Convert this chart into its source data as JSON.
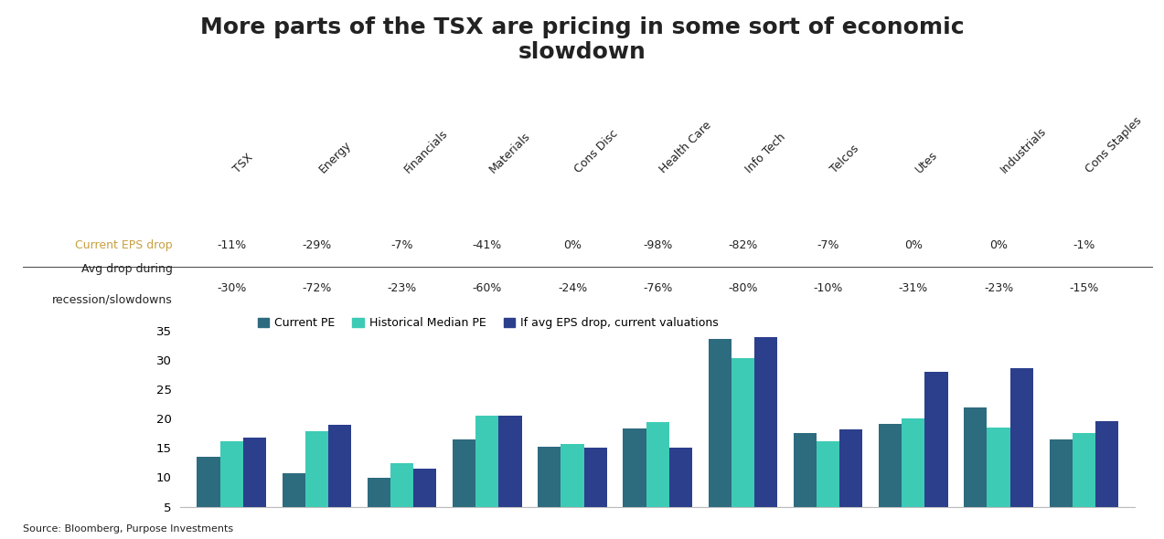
{
  "title": "More parts of the TSX are pricing in some sort of economic\nslowdown",
  "categories": [
    "TSX",
    "Energy",
    "Financials",
    "Materials",
    "Cons Disc",
    "Health Care",
    "Info Tech",
    "Telcos",
    "Utes",
    "Industrials",
    "Cons Staples"
  ],
  "current_eps_drop": [
    "-11%",
    "-29%",
    "-7%",
    "-41%",
    "0%",
    "-98%",
    "-82%",
    "-7%",
    "0%",
    "0%",
    "-1%"
  ],
  "avg_drop": [
    "-30%",
    "-72%",
    "-23%",
    "-60%",
    "-24%",
    "-76%",
    "-80%",
    "-10%",
    "-31%",
    "-23%",
    "-15%"
  ],
  "current_pe": [
    13.5,
    10.7,
    9.9,
    16.5,
    15.2,
    18.3,
    33.5,
    17.5,
    19.0,
    21.8,
    16.5
  ],
  "historical_pe": [
    16.2,
    17.9,
    12.4,
    20.5,
    15.7,
    19.4,
    30.3,
    16.2,
    20.0,
    18.5,
    17.6
  ],
  "if_avg_eps_drop": [
    16.8,
    18.9,
    11.5,
    20.4,
    15.1,
    15.1,
    33.8,
    18.1,
    27.9,
    28.6,
    19.6
  ],
  "color_current_pe": "#2d6b7f",
  "color_historical_pe": "#3dcbb5",
  "color_if_avg_eps": "#2b3f8c",
  "label_current_pe": "Current PE",
  "label_historical_pe": "Historical Median PE",
  "label_if_avg_eps": "If avg EPS drop, current valuations",
  "ylabel_values": [
    5,
    10,
    15,
    20,
    25,
    30,
    35
  ],
  "ylim": [
    5,
    38
  ],
  "source": "Source: Bloomberg, Purpose Investments",
  "row1_label": "Current EPS drop",
  "row2_label": "Avg drop during\nrecession/slowdowns",
  "title_fontsize": 18,
  "label_fontsize": 9,
  "tick_fontsize": 9.5,
  "background_color": "#ffffff",
  "text_color_gold": "#c8a040",
  "text_color_dark": "#222222"
}
